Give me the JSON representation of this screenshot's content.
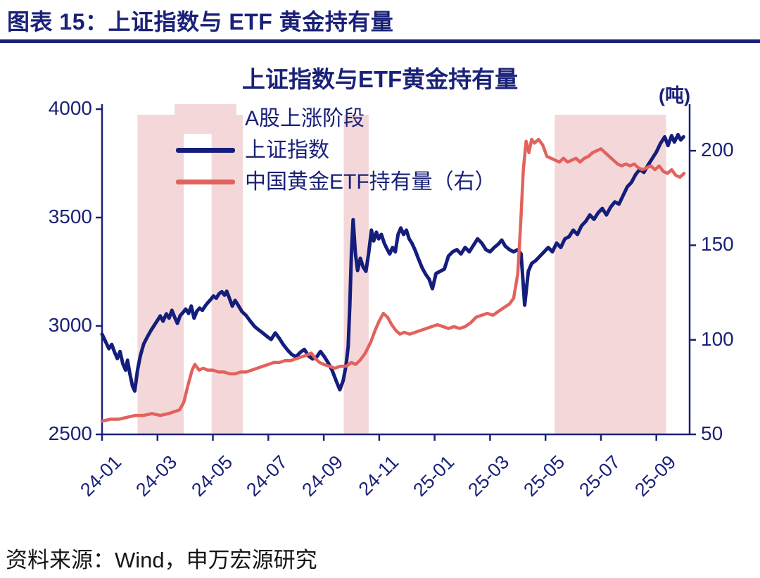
{
  "header": {
    "title": "图表 15：上证指数与 ETF 黄金持有量"
  },
  "chart": {
    "title": "上证指数与ETF黄金持有量",
    "unit_label": "(吨)"
  },
  "legend": {
    "band_label": "A股上涨阶段",
    "series1_label": "上证指数",
    "series2_label": "中国黄金ETF持有量（右）"
  },
  "footer": {
    "source": "资料来源：Wind，申万宏源研究"
  },
  "colors": {
    "navy_text": "#1a2178",
    "navy_line": "#151d7c",
    "red_line": "#e2625e",
    "band_pink": "#f4d8d9",
    "axis": "#1a2178"
  },
  "chart_data": {
    "type": "line",
    "title": "上证指数与ETF黄金持有量",
    "source": "Wind，申万宏源研究",
    "x_unit": "months since 2024-01",
    "x_range": [
      0,
      21.2
    ],
    "x_ticks": {
      "positions": [
        0,
        2,
        4,
        6,
        8,
        10,
        12,
        14,
        16,
        18,
        20
      ],
      "labels": [
        "24-01",
        "24-03",
        "24-05",
        "24-07",
        "24-09",
        "24-11",
        "25-01",
        "25-03",
        "25-05",
        "25-07",
        "25-09"
      ]
    },
    "left_axis": {
      "label": "上证指数",
      "min": 2500,
      "max": 4000,
      "ticks": [
        2500,
        3000,
        3500,
        4000
      ]
    },
    "right_axis": {
      "label": "中国黄金ETF持有量(吨)",
      "min": 50,
      "max": 222,
      "ticks": [
        50,
        100,
        150,
        200
      ]
    },
    "bands": {
      "label": "A股上涨阶段",
      "color": "#f4d8d9",
      "ranges": [
        [
          1.28,
          2.95
        ],
        [
          3.95,
          5.08
        ],
        [
          8.72,
          9.62
        ],
        [
          16.33,
          20.35
        ]
      ]
    },
    "series": [
      {
        "name": "上证指数",
        "axis": "left",
        "color": "#151d7c",
        "width": 5,
        "points": [
          [
            0,
            2962
          ],
          [
            0.12,
            2930
          ],
          [
            0.25,
            2895
          ],
          [
            0.35,
            2915
          ],
          [
            0.45,
            2880
          ],
          [
            0.55,
            2850
          ],
          [
            0.65,
            2882
          ],
          [
            0.75,
            2826
          ],
          [
            0.85,
            2796
          ],
          [
            0.92,
            2842
          ],
          [
            1.0,
            2782
          ],
          [
            1.1,
            2722
          ],
          [
            1.18,
            2700
          ],
          [
            1.28,
            2796
          ],
          [
            1.38,
            2862
          ],
          [
            1.5,
            2916
          ],
          [
            1.62,
            2946
          ],
          [
            1.75,
            2976
          ],
          [
            1.88,
            3002
          ],
          [
            2.0,
            3026
          ],
          [
            2.1,
            3046
          ],
          [
            2.2,
            3022
          ],
          [
            2.32,
            3056
          ],
          [
            2.42,
            3036
          ],
          [
            2.52,
            3072
          ],
          [
            2.62,
            3040
          ],
          [
            2.72,
            3012
          ],
          [
            2.82,
            3048
          ],
          [
            2.92,
            3062
          ],
          [
            3.02,
            3078
          ],
          [
            3.12,
            3058
          ],
          [
            3.22,
            3092
          ],
          [
            3.32,
            3036
          ],
          [
            3.42,
            3068
          ],
          [
            3.52,
            3082
          ],
          [
            3.62,
            3072
          ],
          [
            3.72,
            3092
          ],
          [
            3.82,
            3108
          ],
          [
            3.92,
            3122
          ],
          [
            4.02,
            3138
          ],
          [
            4.12,
            3128
          ],
          [
            4.22,
            3148
          ],
          [
            4.32,
            3158
          ],
          [
            4.42,
            3142
          ],
          [
            4.5,
            3160
          ],
          [
            4.6,
            3126
          ],
          [
            4.7,
            3092
          ],
          [
            4.8,
            3118
          ],
          [
            4.9,
            3098
          ],
          [
            5.05,
            3066
          ],
          [
            5.2,
            3048
          ],
          [
            5.35,
            3022
          ],
          [
            5.5,
            2998
          ],
          [
            5.65,
            2982
          ],
          [
            5.8,
            2968
          ],
          [
            5.95,
            2952
          ],
          [
            6.1,
            2938
          ],
          [
            6.25,
            2968
          ],
          [
            6.4,
            2942
          ],
          [
            6.55,
            2912
          ],
          [
            6.7,
            2888
          ],
          [
            6.85,
            2868
          ],
          [
            7.0,
            2858
          ],
          [
            7.15,
            2878
          ],
          [
            7.3,
            2892
          ],
          [
            7.45,
            2862
          ],
          [
            7.6,
            2848
          ],
          [
            7.75,
            2858
          ],
          [
            7.88,
            2882
          ],
          [
            8.0,
            2862
          ],
          [
            8.15,
            2832
          ],
          [
            8.3,
            2796
          ],
          [
            8.45,
            2746
          ],
          [
            8.58,
            2706
          ],
          [
            8.7,
            2748
          ],
          [
            8.8,
            2816
          ],
          [
            8.88,
            2906
          ],
          [
            8.94,
            3096
          ],
          [
            9.0,
            3346
          ],
          [
            9.06,
            3490
          ],
          [
            9.14,
            3336
          ],
          [
            9.22,
            3256
          ],
          [
            9.32,
            3312
          ],
          [
            9.42,
            3272
          ],
          [
            9.52,
            3252
          ],
          [
            9.62,
            3336
          ],
          [
            9.72,
            3442
          ],
          [
            9.8,
            3392
          ],
          [
            9.9,
            3432
          ],
          [
            9.98,
            3402
          ],
          [
            10.08,
            3422
          ],
          [
            10.18,
            3382
          ],
          [
            10.28,
            3356
          ],
          [
            10.38,
            3332
          ],
          [
            10.48,
            3362
          ],
          [
            10.58,
            3342
          ],
          [
            10.68,
            3422
          ],
          [
            10.78,
            3452
          ],
          [
            10.88,
            3422
          ],
          [
            10.98,
            3442
          ],
          [
            11.08,
            3402
          ],
          [
            11.18,
            3382
          ],
          [
            11.3,
            3348
          ],
          [
            11.42,
            3308
          ],
          [
            11.55,
            3268
          ],
          [
            11.68,
            3238
          ],
          [
            11.8,
            3216
          ],
          [
            11.92,
            3172
          ],
          [
            12.05,
            3242
          ],
          [
            12.2,
            3252
          ],
          [
            12.35,
            3262
          ],
          [
            12.5,
            3322
          ],
          [
            12.65,
            3342
          ],
          [
            12.8,
            3352
          ],
          [
            12.95,
            3332
          ],
          [
            13.1,
            3362
          ],
          [
            13.25,
            3342
          ],
          [
            13.4,
            3372
          ],
          [
            13.55,
            3402
          ],
          [
            13.7,
            3382
          ],
          [
            13.85,
            3352
          ],
          [
            14.0,
            3342
          ],
          [
            14.15,
            3362
          ],
          [
            14.3,
            3378
          ],
          [
            14.42,
            3396
          ],
          [
            14.55,
            3368
          ],
          [
            14.7,
            3352
          ],
          [
            14.85,
            3342
          ],
          [
            15.0,
            3352
          ],
          [
            15.12,
            3332
          ],
          [
            15.25,
            3096
          ],
          [
            15.38,
            3252
          ],
          [
            15.5,
            3288
          ],
          [
            15.65,
            3302
          ],
          [
            15.8,
            3322
          ],
          [
            15.95,
            3342
          ],
          [
            16.1,
            3362
          ],
          [
            16.25,
            3342
          ],
          [
            16.4,
            3382
          ],
          [
            16.55,
            3362
          ],
          [
            16.7,
            3402
          ],
          [
            16.85,
            3412
          ],
          [
            17.0,
            3442
          ],
          [
            17.15,
            3422
          ],
          [
            17.3,
            3462
          ],
          [
            17.45,
            3482
          ],
          [
            17.6,
            3512
          ],
          [
            17.75,
            3492
          ],
          [
            17.9,
            3522
          ],
          [
            18.05,
            3542
          ],
          [
            18.2,
            3512
          ],
          [
            18.35,
            3548
          ],
          [
            18.5,
            3572
          ],
          [
            18.65,
            3562
          ],
          [
            18.8,
            3602
          ],
          [
            18.95,
            3642
          ],
          [
            19.1,
            3662
          ],
          [
            19.25,
            3698
          ],
          [
            19.4,
            3722
          ],
          [
            19.55,
            3708
          ],
          [
            19.7,
            3742
          ],
          [
            19.85,
            3772
          ],
          [
            20.0,
            3802
          ],
          [
            20.15,
            3842
          ],
          [
            20.3,
            3872
          ],
          [
            20.42,
            3832
          ],
          [
            20.55,
            3878
          ],
          [
            20.65,
            3848
          ],
          [
            20.78,
            3882
          ],
          [
            20.88,
            3858
          ],
          [
            20.98,
            3872
          ]
        ]
      },
      {
        "name": "中国黄金ETF持有量（右）",
        "axis": "right",
        "color": "#e2625e",
        "width": 4.5,
        "points": [
          [
            0,
            57
          ],
          [
            0.3,
            58
          ],
          [
            0.6,
            58
          ],
          [
            0.9,
            59
          ],
          [
            1.2,
            60
          ],
          [
            1.5,
            60
          ],
          [
            1.8,
            61
          ],
          [
            2.1,
            60
          ],
          [
            2.4,
            61
          ],
          [
            2.6,
            62
          ],
          [
            2.8,
            63
          ],
          [
            2.95,
            67
          ],
          [
            3.1,
            76
          ],
          [
            3.25,
            84
          ],
          [
            3.35,
            87
          ],
          [
            3.5,
            84
          ],
          [
            3.65,
            85
          ],
          [
            3.8,
            84
          ],
          [
            4.0,
            84
          ],
          [
            4.2,
            83
          ],
          [
            4.4,
            83
          ],
          [
            4.6,
            82
          ],
          [
            4.8,
            82
          ],
          [
            5.0,
            83
          ],
          [
            5.2,
            83
          ],
          [
            5.4,
            84
          ],
          [
            5.6,
            85
          ],
          [
            5.8,
            86
          ],
          [
            6.0,
            87
          ],
          [
            6.2,
            88
          ],
          [
            6.4,
            88
          ],
          [
            6.6,
            89
          ],
          [
            6.8,
            89
          ],
          [
            7.0,
            90
          ],
          [
            7.2,
            91
          ],
          [
            7.4,
            92
          ],
          [
            7.55,
            93
          ],
          [
            7.7,
            90
          ],
          [
            7.85,
            88
          ],
          [
            8.0,
            87
          ],
          [
            8.2,
            86
          ],
          [
            8.4,
            85
          ],
          [
            8.6,
            86
          ],
          [
            8.8,
            86
          ],
          [
            9.0,
            88
          ],
          [
            9.15,
            87
          ],
          [
            9.3,
            89
          ],
          [
            9.5,
            93
          ],
          [
            9.7,
            99
          ],
          [
            9.85,
            105
          ],
          [
            10.0,
            110
          ],
          [
            10.15,
            114
          ],
          [
            10.3,
            112
          ],
          [
            10.45,
            108
          ],
          [
            10.6,
            105
          ],
          [
            10.75,
            103
          ],
          [
            10.9,
            104
          ],
          [
            11.1,
            103
          ],
          [
            11.3,
            104
          ],
          [
            11.5,
            105
          ],
          [
            11.7,
            106
          ],
          [
            11.9,
            107
          ],
          [
            12.1,
            108
          ],
          [
            12.3,
            107
          ],
          [
            12.5,
            106
          ],
          [
            12.7,
            107
          ],
          [
            12.9,
            106
          ],
          [
            13.1,
            107
          ],
          [
            13.3,
            109
          ],
          [
            13.5,
            112
          ],
          [
            13.7,
            113
          ],
          [
            13.9,
            114
          ],
          [
            14.1,
            113
          ],
          [
            14.3,
            115
          ],
          [
            14.5,
            117
          ],
          [
            14.7,
            119
          ],
          [
            14.85,
            122
          ],
          [
            15.0,
            135
          ],
          [
            15.1,
            160
          ],
          [
            15.2,
            190
          ],
          [
            15.3,
            205
          ],
          [
            15.4,
            199
          ],
          [
            15.5,
            206
          ],
          [
            15.6,
            204
          ],
          [
            15.75,
            206
          ],
          [
            15.9,
            203
          ],
          [
            16.05,
            197
          ],
          [
            16.2,
            196
          ],
          [
            16.35,
            195
          ],
          [
            16.5,
            194
          ],
          [
            16.65,
            196
          ],
          [
            16.8,
            194
          ],
          [
            16.95,
            195
          ],
          [
            17.1,
            196
          ],
          [
            17.25,
            194
          ],
          [
            17.4,
            196
          ],
          [
            17.55,
            197
          ],
          [
            17.7,
            199
          ],
          [
            17.85,
            200
          ],
          [
            18.0,
            201
          ],
          [
            18.15,
            199
          ],
          [
            18.3,
            197
          ],
          [
            18.45,
            195
          ],
          [
            18.6,
            193
          ],
          [
            18.75,
            192
          ],
          [
            18.9,
            193
          ],
          [
            19.05,
            192
          ],
          [
            19.2,
            193
          ],
          [
            19.35,
            191
          ],
          [
            19.5,
            190
          ],
          [
            19.65,
            191
          ],
          [
            19.8,
            192
          ],
          [
            19.95,
            190
          ],
          [
            20.1,
            192
          ],
          [
            20.25,
            189
          ],
          [
            20.4,
            188
          ],
          [
            20.55,
            190
          ],
          [
            20.7,
            187
          ],
          [
            20.85,
            186
          ],
          [
            21.0,
            188
          ]
        ]
      }
    ]
  }
}
